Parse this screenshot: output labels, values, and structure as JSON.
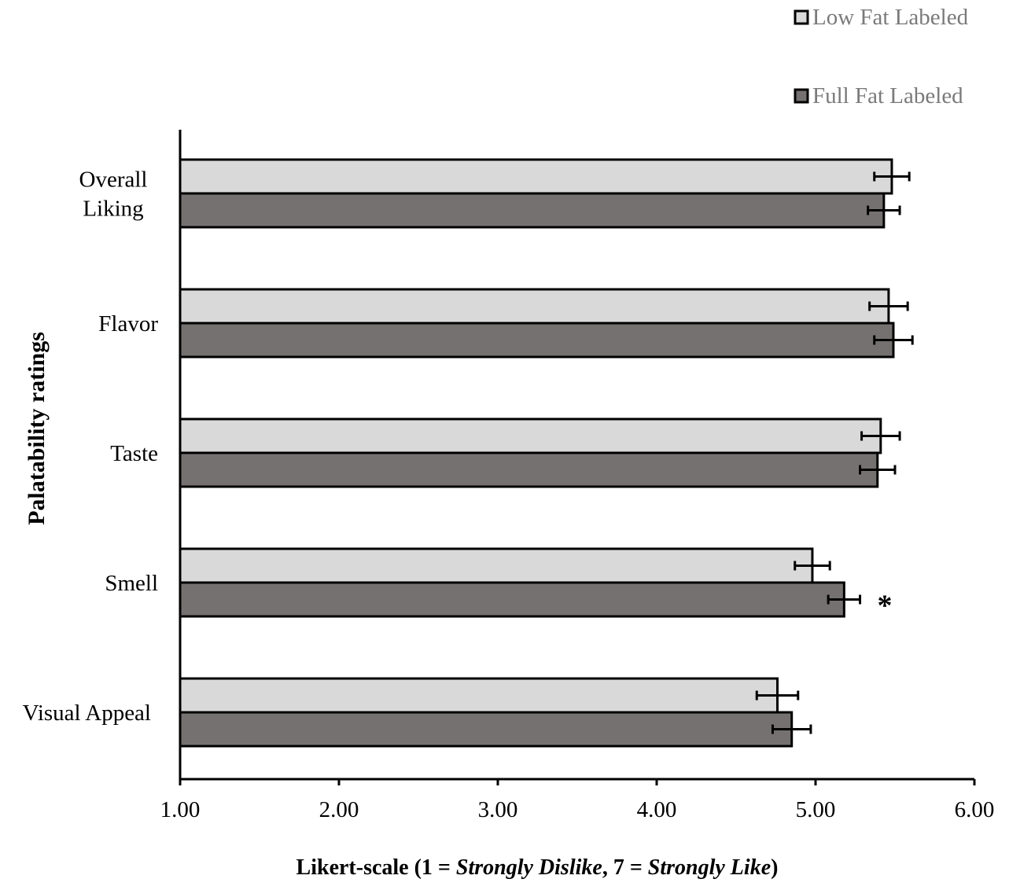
{
  "chart_data": {
    "type": "bar",
    "orientation": "horizontal",
    "categories": [
      "Overall Liking",
      "Flavor",
      "Taste",
      "Smell",
      "Visual Appeal"
    ],
    "category_lines": [
      [
        "Overall",
        "Liking"
      ],
      [
        "Flavor"
      ],
      [
        "Taste"
      ],
      [
        "Smell"
      ],
      [
        "Visual Appeal"
      ]
    ],
    "series": [
      {
        "name": "Low Fat Labeled",
        "color": "#d9d9d9",
        "values": [
          5.48,
          5.46,
          5.41,
          4.98,
          4.76
        ],
        "errors": [
          0.11,
          0.12,
          0.12,
          0.11,
          0.13
        ]
      },
      {
        "name": "Full Fat Labeled",
        "color": "#767171",
        "values": [
          5.43,
          5.49,
          5.39,
          5.18,
          4.85
        ],
        "errors": [
          0.1,
          0.12,
          0.11,
          0.1,
          0.12
        ]
      }
    ],
    "xlim": [
      1.0,
      6.0
    ],
    "xticks": [
      "1.00",
      "2.00",
      "3.00",
      "4.00",
      "5.00",
      "6.00"
    ],
    "ylabel": "Palatability ratings",
    "xlabel_parts": [
      {
        "text": "Likert-scale (1 = ",
        "italic": false
      },
      {
        "text": "Strongly Dislike",
        "italic": true
      },
      {
        "text": ", 7 = ",
        "italic": false
      },
      {
        "text": "Strongly Like",
        "italic": true
      },
      {
        "text": ")",
        "italic": false
      }
    ],
    "annotations": [
      {
        "category": "Smell",
        "series": "Full Fat Labeled",
        "text": "*"
      }
    ],
    "legend_position": "top-right",
    "grid": false
  }
}
